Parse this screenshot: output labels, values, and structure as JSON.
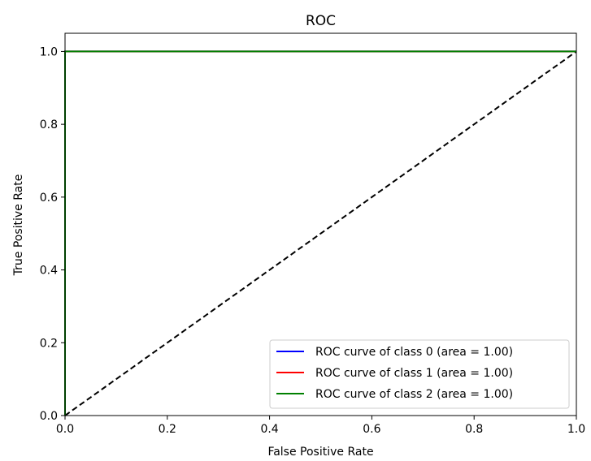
{
  "chart_data": {
    "type": "line",
    "title": "ROC",
    "xlabel": "False Positive Rate",
    "ylabel": "True Positive Rate",
    "xlim": [
      0.0,
      1.0
    ],
    "ylim": [
      0.0,
      1.05
    ],
    "xticks": [
      "0.0",
      "0.2",
      "0.4",
      "0.6",
      "0.8",
      "1.0"
    ],
    "yticks": [
      "0.0",
      "0.2",
      "0.4",
      "0.6",
      "0.8",
      "1.0"
    ],
    "grid": false,
    "legend_position": "lower-right",
    "series": [
      {
        "name": "ROC curve of class 0 (area = 1.00)",
        "color": "#0000ff",
        "x": [
          0.0,
          0.0,
          1.0
        ],
        "y": [
          0.0,
          1.0,
          1.0
        ]
      },
      {
        "name": "ROC curve of class 1 (area = 1.00)",
        "color": "#ff0000",
        "x": [
          0.0,
          0.0,
          1.0
        ],
        "y": [
          0.0,
          1.0,
          1.0
        ]
      },
      {
        "name": "ROC curve of class 2 (area = 1.00)",
        "color": "#008000",
        "x": [
          0.0,
          0.0,
          1.0
        ],
        "y": [
          0.0,
          1.0,
          1.0
        ]
      }
    ],
    "reference_line": {
      "x": [
        0.0,
        1.0
      ],
      "y": [
        0.0,
        1.0
      ],
      "color": "#000000",
      "style": "dashed"
    }
  }
}
